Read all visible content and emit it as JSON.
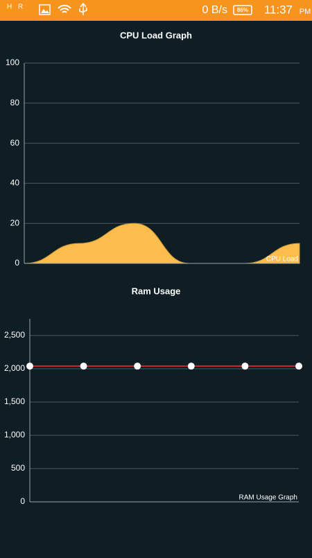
{
  "status_bar": {
    "network": "H",
    "roaming": "R",
    "speed": "0 B/s",
    "battery": "86%",
    "time": "11:37",
    "ampm": "PM"
  },
  "chart_data": [
    {
      "type": "area",
      "title": "CPU Load Graph",
      "legend": "CPU Load",
      "legend_corner": "bottom-right",
      "values": [
        0,
        10,
        20,
        0,
        0,
        10
      ],
      "color": "#fbbd4d",
      "ylim": [
        0,
        100
      ],
      "yticks": [
        0,
        20,
        40,
        60,
        80,
        100
      ],
      "grid": true
    },
    {
      "type": "line",
      "title": "Ram Usage",
      "legend": "RAM Usage Graph",
      "legend_corner": "bottom-right",
      "values": [
        2040,
        2040,
        2040,
        2040,
        2040,
        2040
      ],
      "color": "#e53935",
      "marker_color": "#ffffff",
      "ylim": [
        0,
        2750
      ],
      "yticks": [
        0,
        500,
        {
          "value": 1000,
          "label": "1,000"
        },
        {
          "value": 1500,
          "label": "1,500"
        },
        {
          "value": 2000,
          "label": "2,000"
        },
        {
          "value": 2500,
          "label": "2,500"
        }
      ],
      "grid": true
    }
  ]
}
